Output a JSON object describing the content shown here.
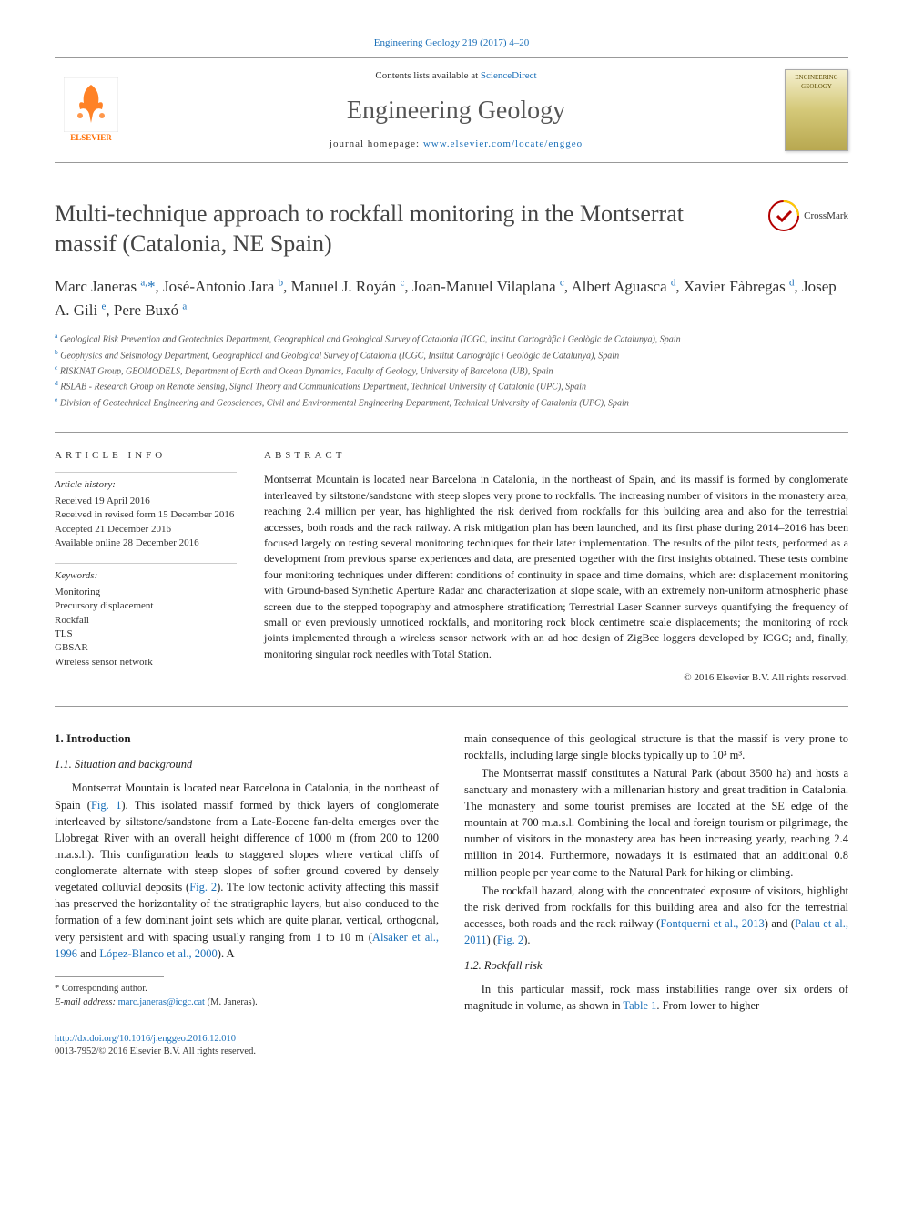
{
  "top_link": "Engineering Geology 219 (2017) 4–20",
  "header": {
    "contents_prefix": "Contents lists available at ",
    "contents_link": "ScienceDirect",
    "journal_name": "Engineering Geology",
    "homepage_prefix": "journal homepage: ",
    "homepage_url": "www.elsevier.com/locate/enggeo",
    "publisher_label": "ELSEVIER",
    "cover_label": "ENGINEERING GEOLOGY"
  },
  "title": "Multi-technique approach to rockfall monitoring in the Montserrat massif (Catalonia, NE Spain)",
  "crossmark_label": "CrossMark",
  "authors_html": "Marc Janeras <sup>a,</sup><span class='asterisk'>*</span>, José-Antonio Jara <sup>b</sup>, Manuel J. Royán <sup>c</sup>, Joan-Manuel Vilaplana <sup>c</sup>, Albert Aguasca <sup>d</sup>, Xavier Fàbregas <sup>d</sup>, Josep A. Gili <sup>e</sup>, Pere Buxó <sup>a</sup>",
  "affiliations": [
    {
      "sup": "a",
      "text": "Geological Risk Prevention and Geotechnics Department, Geographical and Geological Survey of Catalonia (ICGC, Institut Cartogràfic i Geològic de Catalunya), Spain"
    },
    {
      "sup": "b",
      "text": "Geophysics and Seismology Department, Geographical and Geological Survey of Catalonia (ICGC, Institut Cartogràfic i Geològic de Catalunya), Spain"
    },
    {
      "sup": "c",
      "text": "RISKNAT Group, GEOMODELS, Department of Earth and Ocean Dynamics, Faculty of Geology, University of Barcelona (UB), Spain"
    },
    {
      "sup": "d",
      "text": "RSLAB - Research Group on Remote Sensing, Signal Theory and Communications Department, Technical University of Catalonia (UPC), Spain"
    },
    {
      "sup": "e",
      "text": "Division of Geotechnical Engineering and Geosciences, Civil and Environmental Engineering Department, Technical University of Catalonia (UPC), Spain"
    }
  ],
  "info": {
    "heading": "ARTICLE INFO",
    "history_label": "Article history:",
    "history_lines": [
      "Received 19 April 2016",
      "Received in revised form 15 December 2016",
      "Accepted 21 December 2016",
      "Available online 28 December 2016"
    ],
    "keywords_label": "Keywords:",
    "keywords": [
      "Monitoring",
      "Precursory displacement",
      "Rockfall",
      "TLS",
      "GBSAR",
      "Wireless sensor network"
    ]
  },
  "abstract": {
    "heading": "ABSTRACT",
    "text": "Montserrat Mountain is located near Barcelona in Catalonia, in the northeast of Spain, and its massif is formed by conglomerate interleaved by siltstone/sandstone with steep slopes very prone to rockfalls. The increasing number of visitors in the monastery area, reaching 2.4 million per year, has highlighted the risk derived from rockfalls for this building area and also for the terrestrial accesses, both roads and the rack railway. A risk mitigation plan has been launched, and its first phase during 2014–2016 has been focused largely on testing several monitoring techniques for their later implementation. The results of the pilot tests, performed as a development from previous sparse experiences and data, are presented together with the first insights obtained. These tests combine four monitoring techniques under different conditions of continuity in space and time domains, which are: displacement monitoring with Ground-based Synthetic Aperture Radar and characterization at slope scale, with an extremely non-uniform atmospheric phase screen due to the stepped topography and atmosphere stratification; Terrestrial Laser Scanner surveys quantifying the frequency of small or even previously unnoticed rockfalls, and monitoring rock block centimetre scale displacements; the monitoring of rock joints implemented through a wireless sensor network with an ad hoc design of ZigBee loggers developed by ICGC; and, finally, monitoring singular rock needles with Total Station.",
    "copyright": "© 2016 Elsevier B.V. All rights reserved."
  },
  "body": {
    "s1_h": "1. Introduction",
    "s11_h": "1.1. Situation and background",
    "s11_p1_a": "Montserrat Mountain is located near Barcelona in Catalonia, in the northeast of Spain (",
    "s11_p1_fig1": "Fig. 1",
    "s11_p1_b": "). This isolated massif formed by thick layers of conglomerate interleaved by siltstone/sandstone from a Late-Eocene fan-delta emerges over the Llobregat River with an overall height difference of 1000 m (from 200 to 1200 m.a.s.l.). This configuration leads to staggered slopes where vertical cliffs of conglomerate alternate with steep slopes of softer ground covered by densely vegetated colluvial deposits (",
    "s11_p1_fig2": "Fig. 2",
    "s11_p1_c": "). The low tectonic activity affecting this massif has preserved the horizontality of the stratigraphic layers, but also conduced to the formation of a few dominant joint sets which are quite planar, vertical, orthogonal, very persistent and with spacing usually ranging from 1 to 10 m (",
    "s11_p1_ref1": "Alsaker et al., 1996",
    "s11_p1_and": " and ",
    "s11_p1_ref2": "López-Blanco et al., 2000",
    "s11_p1_d": "). A",
    "col2_p1": "main consequence of this geological structure is that the massif is very prone to rockfalls, including large single blocks typically up to 10³ m³.",
    "col2_p2": "The Montserrat massif constitutes a Natural Park (about 3500 ha) and hosts a sanctuary and monastery with a millenarian history and great tradition in Catalonia. The monastery and some tourist premises are located at the SE edge of the mountain at 700 m.a.s.l. Combining the local and foreign tourism or pilgrimage, the number of visitors in the monastery area has been increasing yearly, reaching 2.4 million in 2014. Furthermore, nowadays it is estimated that an additional 0.8 million people per year come to the Natural Park for hiking or climbing.",
    "col2_p3_a": "The rockfall hazard, along with the concentrated exposure of visitors, highlight the risk derived from rockfalls for this building area and also for the terrestrial accesses, both roads and the rack railway (",
    "col2_p3_ref1": "Fontquerni et al., 2013",
    "col2_p3_b": ") and (",
    "col2_p3_ref2": "Palau et al., 2011",
    "col2_p3_c": ") (",
    "col2_p3_fig2": "Fig. 2",
    "col2_p3_d": ").",
    "s12_h": "1.2. Rockfall risk",
    "s12_p1_a": "In this particular massif, rock mass instabilities range over six orders of magnitude in volume, as shown in ",
    "s12_p1_tab1": "Table 1",
    "s12_p1_b": ". From lower to higher"
  },
  "footnote": {
    "corr_label": "* Corresponding author.",
    "email_label": "E-mail address:",
    "email": "marc.janeras@icgc.cat",
    "email_suffix": " (M. Janeras)."
  },
  "footer": {
    "doi": "http://dx.doi.org/10.1016/j.enggeo.2016.12.010",
    "issn_line": "0013-7952/© 2016 Elsevier B.V. All rights reserved."
  },
  "colors": {
    "link": "#1a6fb8",
    "elsevier_orange": "#ff6c00",
    "text": "#333333",
    "rule": "#999999"
  }
}
